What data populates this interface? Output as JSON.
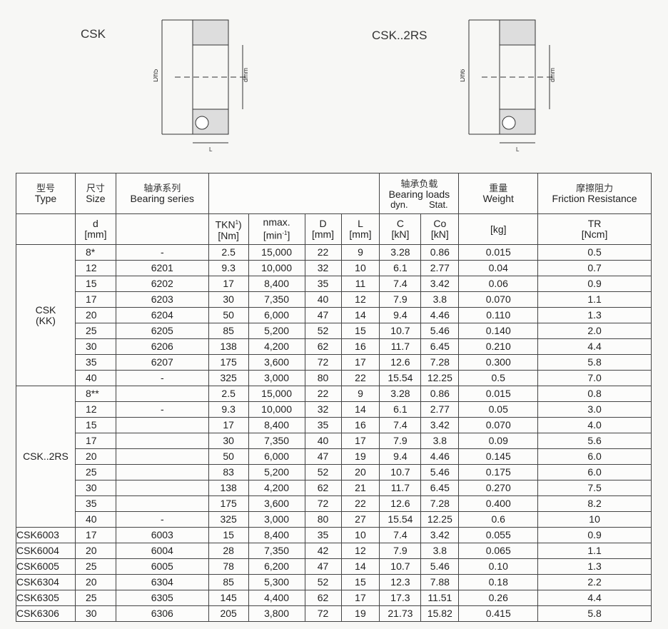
{
  "diagrams": [
    {
      "label": "CSK",
      "dims": {
        "outer": "Dh5",
        "inner": "dmm",
        "length": "L"
      }
    },
    {
      "label": "CSK..2RS",
      "dims": {
        "outer": "Dh6",
        "inner": "dmm",
        "length": "L"
      }
    }
  ],
  "header": {
    "type": {
      "zh": "型号",
      "en": "Type"
    },
    "size": {
      "zh": "尺寸",
      "en": "Size",
      "sym": "d",
      "unit": "[mm]"
    },
    "series": {
      "zh": "轴承系列",
      "en": "Bearing series"
    },
    "tkn": {
      "sym": "TKN",
      "sup": "1",
      "close": ")",
      "unit": "[Nm]"
    },
    "nmax": {
      "sym": "nmax.",
      "unit": "[min",
      "sup": "-1",
      "close": "]"
    },
    "D": {
      "sym": "D",
      "unit": "[mm]"
    },
    "L": {
      "sym": "L",
      "unit": "[mm]"
    },
    "loads": {
      "zh": "轴承负载",
      "en": "Bearing loads",
      "dyn": "dyn.",
      "stat": "Stat."
    },
    "C": {
      "sym": "C",
      "unit": "[kN]"
    },
    "Co": {
      "sym": "Co",
      "unit": "[kN]"
    },
    "weight": {
      "zh": "重量",
      "en": "Weight",
      "unit": "[kg]"
    },
    "friction": {
      "zh": "摩擦阻力",
      "en": "Friction Resistance",
      "sym": "TR",
      "unit": "[Ncm]"
    }
  },
  "groups": [
    {
      "type": "CSK\n(KK)",
      "rows": [
        [
          "8*",
          "-",
          "2.5",
          "15,000",
          "22",
          "9",
          "3.28",
          "0.86",
          "0.015",
          "0.5"
        ],
        [
          "12",
          "6201",
          "9.3",
          "10,000",
          "32",
          "10",
          "6.1",
          "2.77",
          "0.04",
          "0.7"
        ],
        [
          "15",
          "6202",
          "17",
          "8,400",
          "35",
          "11",
          "7.4",
          "3.42",
          "0.06",
          "0.9"
        ],
        [
          "17",
          "6203",
          "30",
          "7,350",
          "40",
          "12",
          "7.9",
          "3.8",
          "0.070",
          "1.1"
        ],
        [
          "20",
          "6204",
          "50",
          "6,000",
          "47",
          "14",
          "9.4",
          "4.46",
          "0.110",
          "1.3"
        ],
        [
          "25",
          "6205",
          "85",
          "5,200",
          "52",
          "15",
          "10.7",
          "5.46",
          "0.140",
          "2.0"
        ],
        [
          "30",
          "6206",
          "138",
          "4,200",
          "62",
          "16",
          "11.7",
          "6.45",
          "0.210",
          "4.4"
        ],
        [
          "35",
          "6207",
          "175",
          "3,600",
          "72",
          "17",
          "12.6",
          "7.28",
          "0.300",
          "5.8"
        ],
        [
          "40",
          "-",
          "325",
          "3,000",
          "80",
          "22",
          "15.54",
          "12.25",
          "0.5",
          "7.0"
        ]
      ]
    },
    {
      "type": "CSK..2RS",
      "rows": [
        [
          "8**",
          "",
          "2.5",
          "15,000",
          "22",
          "9",
          "3.28",
          "0.86",
          "0.015",
          "0.8"
        ],
        [
          "12",
          "-",
          "9.3",
          "10,000",
          "32",
          "14",
          "6.1",
          "2.77",
          "0.05",
          "3.0"
        ],
        [
          "15",
          "",
          "17",
          "8,400",
          "35",
          "16",
          "7.4",
          "3.42",
          "0.070",
          "4.0"
        ],
        [
          "17",
          "",
          "30",
          "7,350",
          "40",
          "17",
          "7.9",
          "3.8",
          "0.09",
          "5.6"
        ],
        [
          "20",
          "",
          "50",
          "6,000",
          "47",
          "19",
          "9.4",
          "4.46",
          "0.145",
          "6.0"
        ],
        [
          "25",
          "",
          "83",
          "5,200",
          "52",
          "20",
          "10.7",
          "5.46",
          "0.175",
          "6.0"
        ],
        [
          "30",
          "",
          "138",
          "4,200",
          "62",
          "21",
          "11.7",
          "6.45",
          "0.270",
          "7.5"
        ],
        [
          "35",
          "",
          "175",
          "3,600",
          "72",
          "22",
          "12.6",
          "7.28",
          "0.400",
          "8.2"
        ],
        [
          "40",
          "-",
          "325",
          "3,000",
          "80",
          "27",
          "15.54",
          "12.25",
          "0.6",
          "10"
        ]
      ]
    },
    {
      "type": "CSK6003",
      "rows": [
        [
          "17",
          "6003",
          "15",
          "8,400",
          "35",
          "10",
          "7.4",
          "3.42",
          "0.055",
          "0.9"
        ]
      ]
    },
    {
      "type": "CSK6004",
      "rows": [
        [
          "20",
          "6004",
          "28",
          "7,350",
          "42",
          "12",
          "7.9",
          "3.8",
          "0.065",
          "1.1"
        ]
      ]
    },
    {
      "type": "CSK6005",
      "rows": [
        [
          "25",
          "6005",
          "78",
          "6,200",
          "47",
          "14",
          "10.7",
          "5.46",
          "0.10",
          "1.3"
        ]
      ]
    },
    {
      "type": "CSK6304",
      "rows": [
        [
          "20",
          "6304",
          "85",
          "5,300",
          "52",
          "15",
          "12.3",
          "7.88",
          "0.18",
          "2.2"
        ]
      ]
    },
    {
      "type": "CSK6305",
      "rows": [
        [
          "25",
          "6305",
          "145",
          "4,400",
          "62",
          "17",
          "17.3",
          "11.51",
          "0.26",
          "4.4"
        ]
      ]
    },
    {
      "type": "CSK6306",
      "rows": [
        [
          "30",
          "6306",
          "205",
          "3,800",
          "72",
          "19",
          "21.73",
          "15.82",
          "0.415",
          "5.8"
        ]
      ]
    }
  ]
}
